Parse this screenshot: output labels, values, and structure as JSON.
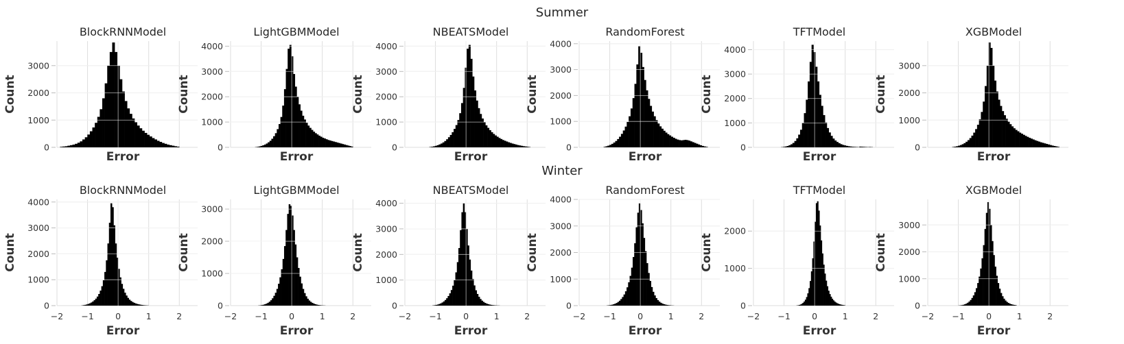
{
  "figure": {
    "colors": {
      "bars": "#000000",
      "grid": "#dddddd",
      "text": "#262626",
      "background": "#ffffff"
    }
  },
  "chart_data": [
    {
      "type": "bar",
      "row_title": "Summer",
      "show_x_tick_labels": false,
      "x_ticks": [
        -2,
        -1,
        0,
        1,
        2
      ],
      "panels": [
        {
          "title": "BlockRNNModel",
          "xlabel": "Error",
          "ylabel": "Count",
          "ylim": [
            0,
            3900
          ],
          "y_ticks": [
            0,
            1000,
            2000,
            3000
          ],
          "xlim": [
            -2,
            2.6
          ],
          "bins": {
            "start": -1.9,
            "end": 2.0,
            "n": 48,
            "values": [
              20,
              30,
              40,
              60,
              80,
              100,
              130,
              170,
              220,
              290,
              370,
              470,
              590,
              730,
              900,
              1120,
              1400,
              1800,
              2350,
              3000,
              3500,
              3850,
              3500,
              3000,
              2500,
              2050,
              1700,
              1430,
              1230,
              1060,
              920,
              800,
              700,
              610,
              530,
              460,
              400,
              340,
              290,
              240,
              200,
              160,
              130,
              100,
              80,
              60,
              40,
              25
            ]
          }
        },
        {
          "title": "LightGBMModel",
          "xlabel": "Error",
          "ylabel": "Count",
          "ylim": [
            0,
            4200
          ],
          "y_ticks": [
            0,
            1000,
            2000,
            3000,
            4000
          ],
          "xlim": [
            -2,
            2.6
          ],
          "bins": {
            "start": -1.2,
            "end": 2.0,
            "n": 54,
            "values": [
              10,
              20,
              35,
              55,
              80,
              110,
              150,
              200,
              260,
              340,
              440,
              560,
              720,
              920,
              1200,
              1650,
              2300,
              3100,
              3900,
              4050,
              3600,
              2900,
              2400,
              2000,
              1700,
              1450,
              1250,
              1100,
              970,
              860,
              770,
              690,
              620,
              560,
              510,
              460,
              420,
              380,
              350,
              320,
              290,
              270,
              250,
              230,
              210,
              190,
              170,
              150,
              130,
              110,
              90,
              70,
              50,
              30
            ]
          }
        },
        {
          "title": "NBEATSModel",
          "xlabel": "Error",
          "ylabel": "Count",
          "ylim": [
            0,
            4200
          ],
          "y_ticks": [
            0,
            1000,
            2000,
            3000,
            4000
          ],
          "xlim": [
            -2,
            2.6
          ],
          "bins": {
            "start": -1.2,
            "end": 2.1,
            "n": 54,
            "values": [
              15,
              25,
              40,
              60,
              85,
              115,
              150,
              195,
              250,
              320,
              400,
              490,
              600,
              730,
              880,
              1080,
              1350,
              1750,
              2350,
              3150,
              3900,
              4050,
              3500,
              2800,
              2250,
              1850,
              1550,
              1320,
              1140,
              990,
              870,
              770,
              680,
              600,
              530,
              470,
              420,
              370,
              330,
              290,
              260,
              230,
              200,
              175,
              150,
              130,
              110,
              90,
              75,
              60,
              45,
              35,
              25,
              15
            ]
          }
        },
        {
          "title": "RandomForest",
          "xlabel": "Error",
          "ylabel": "Count",
          "ylim": [
            0,
            4100
          ],
          "y_ticks": [
            0,
            1000,
            2000,
            3000,
            4000
          ],
          "xlim": [
            -2,
            2.6
          ],
          "bins": {
            "start": -1.2,
            "end": 2.2,
            "n": 54,
            "values": [
              20,
              40,
              65,
              95,
              135,
              185,
              245,
              320,
              410,
              520,
              650,
              800,
              980,
              1200,
              1500,
              1900,
              2450,
              3200,
              3900,
              3650,
              3100,
              2600,
              2200,
              1870,
              1600,
              1380,
              1200,
              1050,
              920,
              810,
              720,
              640,
              570,
              510,
              460,
              410,
              370,
              330,
              300,
              280,
              270,
              280,
              290,
              280,
              260,
              230,
              200,
              170,
              140,
              110,
              80,
              55,
              35,
              20
            ]
          }
        },
        {
          "title": "TFTModel",
          "xlabel": "Error",
          "ylabel": "Count",
          "ylim": [
            0,
            4350
          ],
          "y_ticks": [
            0,
            1000,
            2000,
            3000,
            4000
          ],
          "xlim": [
            -2,
            2.6
          ],
          "bins": {
            "start": -1.1,
            "end": 1.9,
            "n": 48,
            "values": [
              10,
              20,
              35,
              55,
              85,
              125,
              180,
              260,
              370,
              520,
              720,
              1000,
              1400,
              1950,
              2700,
              3500,
              4200,
              3900,
              3300,
              2700,
              2150,
              1700,
              1320,
              1020,
              790,
              610,
              470,
              360,
              280,
              220,
              170,
              130,
              100,
              80,
              60,
              45,
              35,
              25,
              20,
              15,
              10,
              30,
              25,
              20,
              15,
              10,
              15,
              10
            ]
          }
        },
        {
          "title": "XGBModel",
          "xlabel": "Error",
          "ylabel": "Count",
          "ylim": [
            0,
            3900
          ],
          "y_ticks": [
            0,
            1000,
            2000,
            3000
          ],
          "xlim": [
            -2,
            2.6
          ],
          "bins": {
            "start": -1.2,
            "end": 2.3,
            "n": 56,
            "values": [
              15,
              25,
              40,
              60,
              85,
              115,
              155,
              205,
              265,
              340,
              430,
              540,
              670,
              830,
              1030,
              1300,
              1680,
              2250,
              3000,
              3850,
              3650,
              3000,
              2450,
              2050,
              1750,
              1520,
              1330,
              1180,
              1050,
              940,
              850,
              770,
              700,
              640,
              590,
              540,
              500,
              460,
              420,
              385,
              350,
              320,
              290,
              260,
              235,
              210,
              185,
              165,
              145,
              125,
              105,
              85,
              65,
              50,
              35,
              20
            ]
          }
        }
      ]
    },
    {
      "type": "bar",
      "row_title": "Winter",
      "show_x_tick_labels": true,
      "x_ticks": [
        -2,
        -1,
        0,
        1,
        2
      ],
      "panels": [
        {
          "title": "BlockRNNModel",
          "xlabel": "Error",
          "ylabel": "Count",
          "ylim": [
            0,
            4100
          ],
          "y_ticks": [
            0,
            1000,
            2000,
            3000,
            4000
          ],
          "xlim": [
            -2,
            2.6
          ],
          "bins": {
            "start": -1.2,
            "end": 1.0,
            "n": 44,
            "values": [
              10,
              20,
              30,
              45,
              65,
              90,
              120,
              160,
              210,
              270,
              350,
              450,
              580,
              750,
              980,
              1300,
              1750,
              2400,
              3200,
              3950,
              3800,
              3100,
              2400,
              1850,
              1420,
              1090,
              840,
              650,
              500,
              390,
              300,
              230,
              180,
              140,
              110,
              85,
              65,
              50,
              38,
              28,
              20,
              14,
              10,
              6
            ]
          }
        },
        {
          "title": "LightGBMModel",
          "xlabel": "Error",
          "ylabel": "Count",
          "ylim": [
            0,
            3300
          ],
          "y_ticks": [
            0,
            1000,
            2000,
            3000
          ],
          "xlim": [
            -2,
            2.6
          ],
          "bins": {
            "start": -1.1,
            "end": 1.1,
            "n": 44,
            "values": [
              5,
              10,
              18,
              28,
              42,
              62,
              88,
              122,
              168,
              228,
              305,
              400,
              520,
              680,
              880,
              1130,
              1450,
              1850,
              2350,
              2850,
              3150,
              3100,
              2800,
              2350,
              1900,
              1500,
              1170,
              900,
              690,
              520,
              390,
              290,
              215,
              160,
              118,
              86,
              62,
              44,
              31,
              21,
              14,
              9,
              6,
              4
            ]
          }
        },
        {
          "title": "NBEATSModel",
          "xlabel": "Error",
          "ylabel": "Count",
          "ylim": [
            0,
            4150
          ],
          "y_ticks": [
            0,
            1000,
            2000,
            3000,
            4000
          ],
          "xlim": [
            -2,
            2.6
          ],
          "bins": {
            "start": -1.1,
            "end": 1.1,
            "n": 44,
            "values": [
              10,
              18,
              28,
              42,
              62,
              88,
              122,
              165,
              220,
              290,
              375,
              480,
              610,
              780,
              1000,
              1300,
              1700,
              2250,
              2950,
              3650,
              4000,
              3650,
              3000,
              2350,
              1800,
              1370,
              1040,
              790,
              600,
              455,
              345,
              260,
              195,
              146,
              108,
              80,
              58,
              42,
              30,
              21,
              15,
              10,
              7,
              5
            ]
          }
        },
        {
          "title": "RandomForest",
          "xlabel": "Error",
          "ylabel": "Count",
          "ylim": [
            0,
            4000
          ],
          "y_ticks": [
            0,
            1000,
            2000,
            3000,
            4000
          ],
          "xlim": [
            -2,
            2.6
          ],
          "bins": {
            "start": -1.1,
            "end": 1.1,
            "n": 44,
            "values": [
              8,
              14,
              22,
              34,
              50,
              72,
              100,
              138,
              186,
              248,
              325,
              420,
              540,
              690,
              880,
              1120,
              1430,
              1830,
              2350,
              2950,
              3500,
              3850,
              3600,
              3100,
              2550,
              2050,
              1600,
              1230,
              930,
              700,
              520,
              385,
              283,
              207,
              150,
              108,
              77,
              55,
              39,
              27,
              19,
              13,
              8,
              5
            ]
          }
        },
        {
          "title": "TFTModel",
          "xlabel": "Error",
          "ylabel": "Count",
          "ylim": [
            0,
            2850
          ],
          "y_ticks": [
            0,
            1000,
            2000
          ],
          "xlim": [
            -2,
            2.6
          ],
          "bins": {
            "start": -0.6,
            "end": 1.0,
            "n": 40,
            "values": [
              5,
              10,
              18,
              30,
              48,
              75,
              110,
              160,
              230,
              330,
              470,
              660,
              920,
              1270,
              1720,
              2250,
              2750,
              2800,
              2550,
              2150,
              1750,
              1400,
              1100,
              860,
              670,
              520,
              400,
              310,
              240,
              185,
              142,
              109,
              84,
              64,
              49,
              37,
              28,
              21,
              15,
              10
            ]
          }
        },
        {
          "title": "XGBModel",
          "xlabel": "Error",
          "ylabel": "Count",
          "ylim": [
            0,
            3950
          ],
          "y_ticks": [
            0,
            1000,
            2000,
            3000
          ],
          "xlim": [
            -2,
            2.6
          ],
          "bins": {
            "start": -1.0,
            "end": 0.9,
            "n": 40,
            "values": [
              6,
              12,
              20,
              32,
              50,
              75,
              108,
              152,
              210,
              285,
              380,
              500,
              650,
              840,
              1080,
              1380,
              1760,
              2250,
              2850,
              3450,
              3850,
              3600,
              3000,
              2400,
              1880,
              1450,
              1110,
              840,
              630,
              470,
              350,
              258,
              190,
              139,
              101,
              73,
              52,
              37,
              26,
              18
            ]
          }
        }
      ]
    }
  ]
}
